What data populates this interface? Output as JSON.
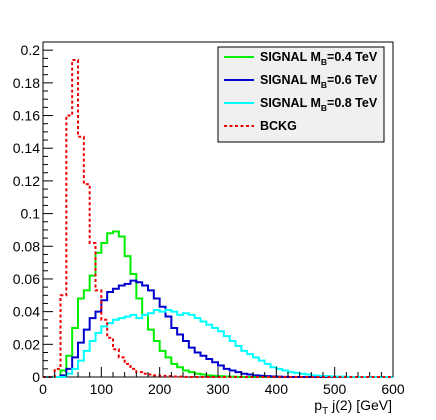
{
  "chart_data": {
    "type": "line",
    "style": "step histogram",
    "title": "",
    "xlabel": "",
    "ylabel": "",
    "xaxis_title_parts": {
      "pre": "p",
      "sub": "T",
      "post": " j(2) [GeV]"
    },
    "xlim": [
      0,
      600
    ],
    "ylim": [
      0,
      0.205
    ],
    "x_ticks": [
      0,
      100,
      200,
      300,
      400,
      500,
      600
    ],
    "x_tick_labels": [
      "0",
      "100",
      "200",
      "300",
      "400",
      "500",
      "600"
    ],
    "y_ticks": [
      0,
      0.02,
      0.04,
      0.06,
      0.08,
      0.1,
      0.12,
      0.14,
      0.16,
      0.18,
      0.2
    ],
    "y_tick_labels": [
      "0",
      "0.02",
      "0.04",
      "0.06",
      "0.08",
      "0.1",
      "0.12",
      "0.14",
      "0.16",
      "0.18",
      "0.2"
    ],
    "grid": false,
    "legend_position": "top-right",
    "bin_edges": [
      0,
      10,
      20,
      30,
      40,
      50,
      60,
      70,
      80,
      90,
      100,
      110,
      120,
      130,
      140,
      150,
      160,
      170,
      180,
      190,
      200,
      210,
      220,
      230,
      240,
      250,
      260,
      270,
      280,
      290,
      300,
      310,
      320,
      330,
      340,
      350,
      360,
      370,
      380,
      390,
      400,
      410,
      420,
      430,
      440,
      450,
      460,
      470,
      480,
      490,
      500,
      510,
      520,
      530,
      540,
      550,
      560,
      570,
      580,
      590,
      600
    ],
    "series": [
      {
        "legend_pre": "SIGNAL M",
        "legend_sub": "B",
        "legend_post": "=0.4 TeV",
        "color": "#00ee00",
        "dash": "",
        "values": [
          0,
          0,
          0,
          0.004,
          0.013,
          0.03,
          0.048,
          0.053,
          0.062,
          0.076,
          0.082,
          0.088,
          0.089,
          0.086,
          0.074,
          0.063,
          0.048,
          0.038,
          0.029,
          0.022,
          0.016,
          0.012,
          0.008,
          0.006,
          0.004,
          0.003,
          0.002,
          0.0015,
          0.001,
          0.0007,
          0.0005,
          0.0003,
          0.0002,
          0.0001,
          0,
          0,
          0,
          0,
          0,
          0,
          0,
          0,
          0,
          0,
          0,
          0,
          0,
          0,
          0,
          0,
          0,
          0,
          0,
          0,
          0,
          0,
          0,
          0,
          0,
          0
        ]
      },
      {
        "legend_pre": "SIGNAL M",
        "legend_sub": "B",
        "legend_post": "=0.6 TeV",
        "color": "#0000cc",
        "dash": "",
        "values": [
          0,
          0,
          0,
          0.001,
          0.005,
          0.012,
          0.021,
          0.029,
          0.036,
          0.04,
          0.047,
          0.052,
          0.054,
          0.056,
          0.057,
          0.059,
          0.058,
          0.056,
          0.053,
          0.048,
          0.043,
          0.037,
          0.03,
          0.026,
          0.022,
          0.018,
          0.015,
          0.013,
          0.011,
          0.009,
          0.007,
          0.005,
          0.004,
          0.003,
          0.002,
          0.0015,
          0.001,
          0.0008,
          0.0005,
          0.0003,
          0.0002,
          0.0001,
          0,
          0,
          0,
          0,
          0,
          0,
          0,
          0,
          0,
          0,
          0,
          0,
          0,
          0,
          0,
          0,
          0,
          0
        ]
      },
      {
        "legend_pre": "SIGNAL M",
        "legend_sub": "B",
        "legend_post": "=0.8 TeV",
        "color": "#00ffff",
        "dash": "",
        "values": [
          0,
          0,
          0,
          0,
          0.002,
          0.005,
          0.01,
          0.016,
          0.022,
          0.027,
          0.031,
          0.033,
          0.035,
          0.036,
          0.037,
          0.038,
          0.036,
          0.038,
          0.039,
          0.041,
          0.04,
          0.041,
          0.04,
          0.038,
          0.039,
          0.038,
          0.036,
          0.034,
          0.032,
          0.03,
          0.028,
          0.025,
          0.022,
          0.019,
          0.016,
          0.014,
          0.012,
          0.01,
          0.008,
          0.006,
          0.005,
          0.004,
          0.003,
          0.0025,
          0.002,
          0.0015,
          0.001,
          0.0008,
          0.0006,
          0.0004,
          0.0003,
          0.0002,
          0.0001,
          0,
          0,
          0,
          0,
          0,
          0,
          0
        ]
      },
      {
        "legend_pre": "BCKG",
        "legend_sub": "",
        "legend_post": "",
        "color": "#ee0000",
        "dash": "3,2.5",
        "values": [
          0,
          0,
          0.005,
          0.05,
          0.16,
          0.194,
          0.147,
          0.118,
          0.082,
          0.053,
          0.035,
          0.024,
          0.017,
          0.012,
          0.008,
          0.005,
          0.003,
          0.002,
          0.0015,
          0.001,
          0.0007,
          0.0005,
          0.0003,
          0.0002,
          0.0001,
          0,
          0,
          0,
          0,
          0,
          0,
          0,
          0,
          0,
          0,
          0,
          0,
          0,
          0,
          0,
          0,
          0,
          0,
          0,
          0,
          0,
          0,
          0,
          0,
          0,
          0,
          0,
          0,
          0,
          0,
          0,
          0,
          0,
          0,
          0
        ]
      }
    ]
  }
}
